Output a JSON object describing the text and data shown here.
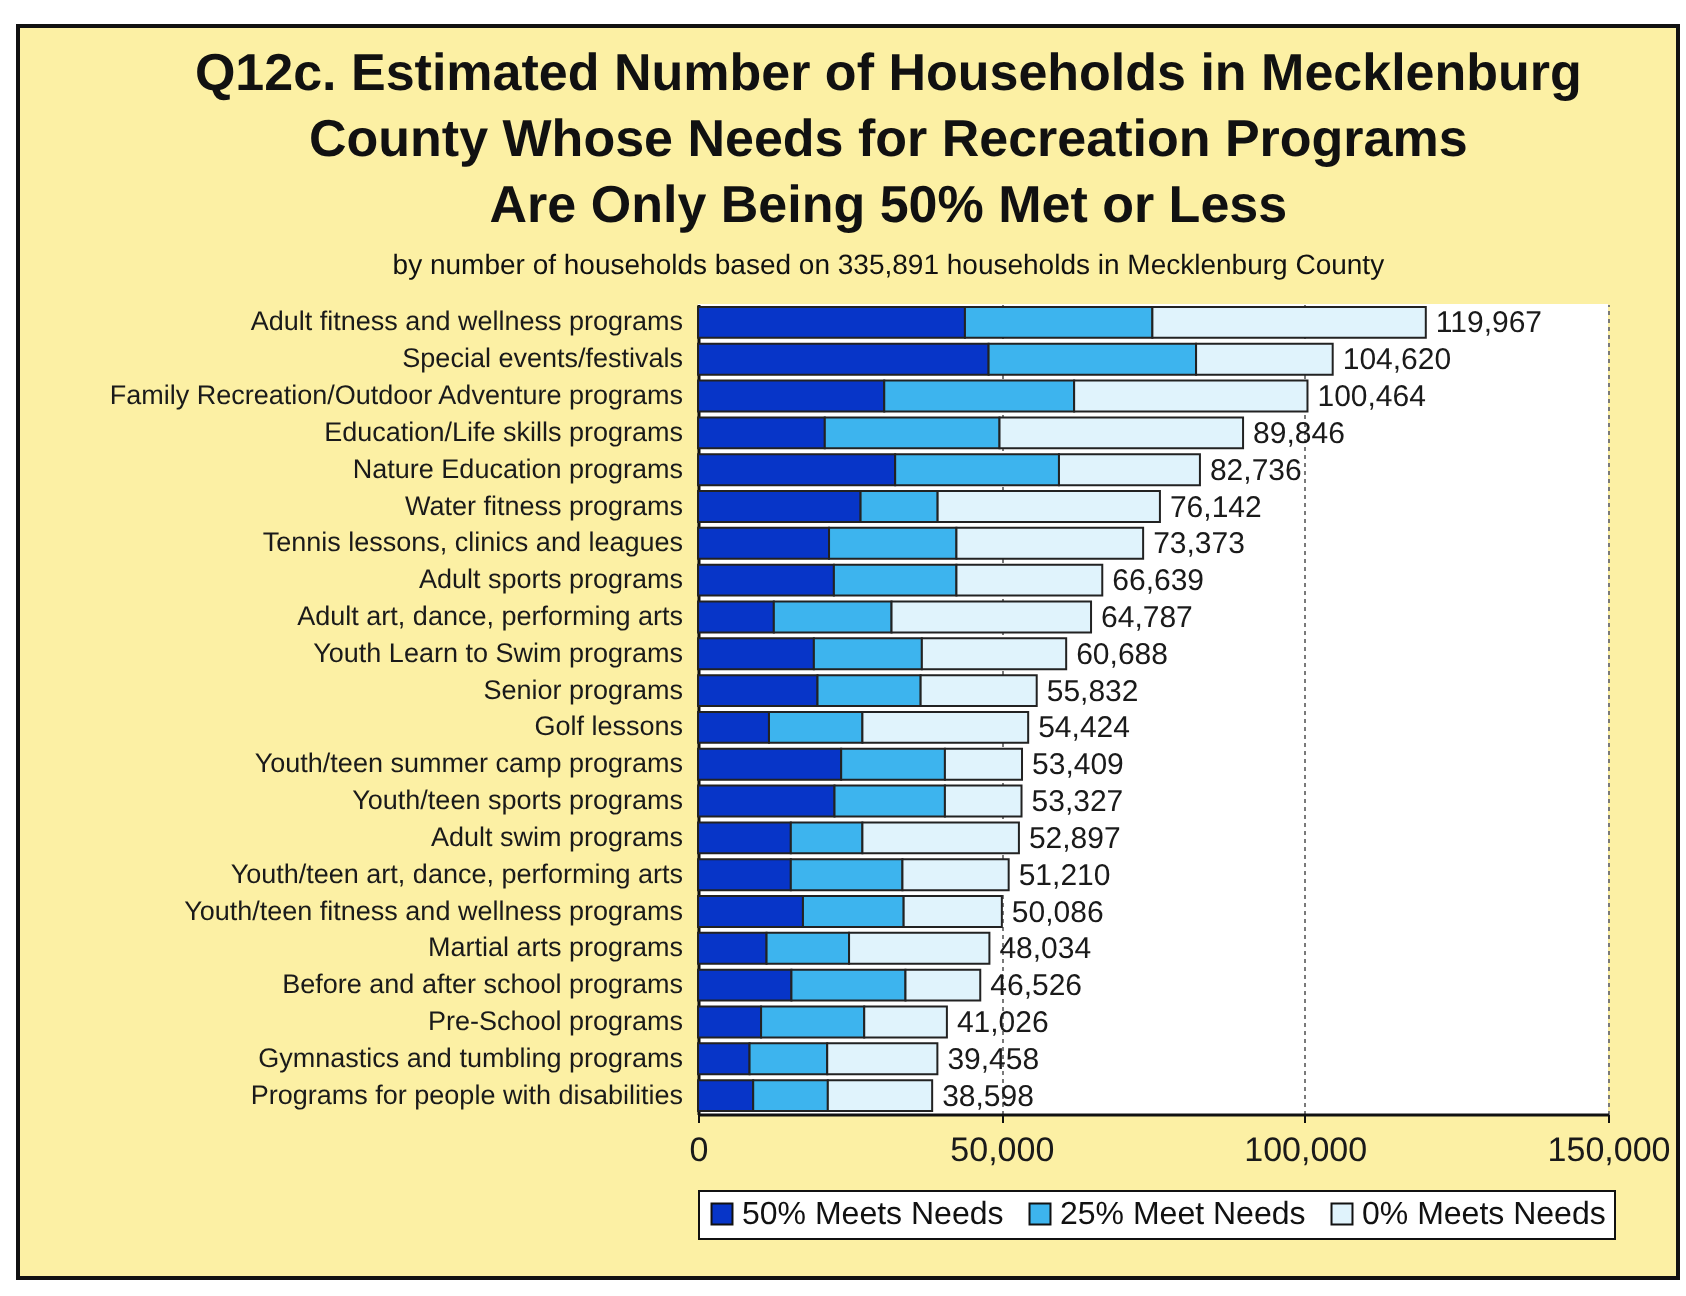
{
  "chart_data": {
    "type": "bar",
    "orientation": "horizontal",
    "stacked": true,
    "title": "Q12c. Estimated Number of Households in Mecklenburg\nCounty Whose Needs for Recreation Programs\nAre Only Being 50% Met or Less",
    "subtitle": "by number of households based on 335,891 households in Mecklenburg County",
    "categories": [
      "Adult fitness and wellness programs",
      "Special events/festivals",
      "Family Recreation/Outdoor Adventure programs",
      "Education/Life skills programs",
      "Nature Education programs",
      "Water fitness programs",
      "Tennis lessons, clinics and leagues",
      "Adult sports programs",
      "Adult art, dance, performing arts",
      "Youth Learn to Swim programs",
      "Senior programs",
      "Golf lessons",
      "Youth/teen summer camp programs",
      "Youth/teen sports programs",
      "Adult swim programs",
      "Youth/teen art, dance, performing arts",
      "Youth/teen fitness and wellness programs",
      "Martial arts programs",
      "Before and after school programs",
      "Pre-School programs",
      "Gymnastics and tumbling programs",
      "Programs for people with disabilities"
    ],
    "series": [
      {
        "name": "50% Meets Needs",
        "color": "#0735c8",
        "values": [
          44000,
          47900,
          30700,
          20900,
          32500,
          26800,
          21600,
          22400,
          12500,
          19100,
          19700,
          11700,
          23600,
          22500,
          15300,
          15300,
          17300,
          11300,
          15400,
          10400,
          8500,
          9100
        ]
      },
      {
        "name": "25% Meet Needs",
        "color": "#3db4ee",
        "values": [
          30900,
          34200,
          31300,
          28800,
          27000,
          12700,
          21000,
          20200,
          19400,
          17800,
          17000,
          15400,
          17100,
          18200,
          11800,
          18400,
          16600,
          13600,
          18800,
          17000,
          12800,
          12300
        ]
      },
      {
        "name": "0% Meets Needs",
        "color": "#e0f3fc",
        "values": [
          45067,
          22520,
          38464,
          40146,
          23236,
          36642,
          30773,
          24039,
          32887,
          23788,
          19132,
          27324,
          12709,
          12627,
          25797,
          17510,
          16186,
          23134,
          12326,
          13626,
          18158,
          17198
        ]
      }
    ],
    "totals": [
      "119,967",
      "104,620",
      "100,464",
      "89,846",
      "82,736",
      "76,142",
      "73,373",
      "66,639",
      "64,787",
      "60,688",
      "55,832",
      "54,424",
      "53,409",
      "53,327",
      "52,897",
      "51,210",
      "50,086",
      "48,034",
      "46,526",
      "41,026",
      "39,458",
      "38,598"
    ],
    "xlim": [
      0,
      150000
    ],
    "xticks": [
      0,
      {
        "value": 50000,
        "label": "50,000"
      },
      {
        "value": 100000,
        "label": "100,000"
      },
      {
        "value": 150000,
        "label": "150,000"
      }
    ],
    "grid": "x",
    "legend": "bottom"
  }
}
